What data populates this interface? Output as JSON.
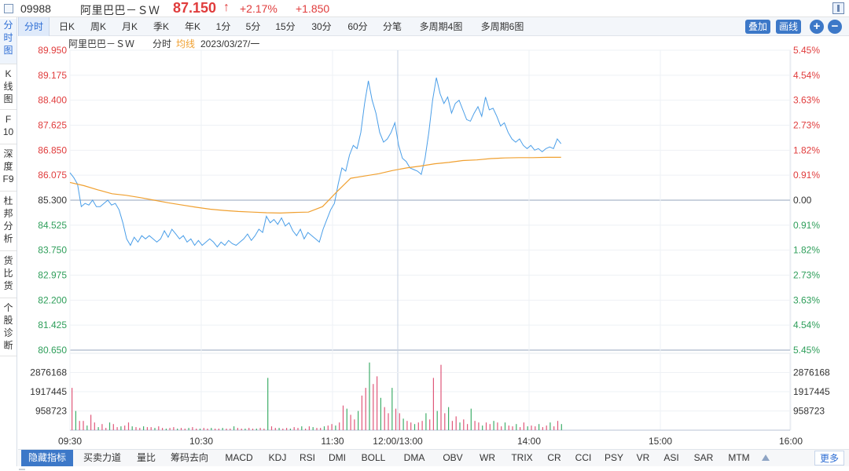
{
  "header": {
    "code": "09988",
    "name": "阿里巴巴－ＳＷ",
    "price": "87.150",
    "arrow": "↑",
    "change_pct": "+2.17%",
    "change": "+1.850"
  },
  "left_tabs": [
    {
      "label": [
        "分",
        "时",
        "图"
      ],
      "active": true
    },
    {
      "label": [
        "K",
        "线",
        "图"
      ],
      "active": false
    },
    {
      "label": [
        "F",
        "10"
      ],
      "active": false
    },
    {
      "label": [
        "深",
        "度",
        "F9"
      ],
      "active": false
    },
    {
      "label": [
        "杜",
        "邦",
        "分",
        "析"
      ],
      "active": false
    },
    {
      "label": [
        "货",
        "比",
        "货"
      ],
      "active": false
    },
    {
      "label": [
        "个",
        "股",
        "诊",
        "断"
      ],
      "active": false
    }
  ],
  "period_tabs": [
    "分时",
    "日K",
    "周K",
    "月K",
    "季K",
    "年K",
    "1分",
    "5分",
    "15分",
    "30分",
    "60分",
    "分笔",
    "多周期4图",
    "多周期6图"
  ],
  "toolbar": {
    "overlay": "叠加",
    "draw": "画线",
    "zoom_in": "+",
    "zoom_out": "−"
  },
  "chart_data": {
    "type": "line",
    "legend": {
      "name": "阿里巴巴－ＳＷ",
      "mode": "分时",
      "avg": "均线",
      "date": "2023/03/27/一"
    },
    "y_left_ticks": [
      "89.950",
      "89.175",
      "88.400",
      "87.625",
      "86.850",
      "86.075",
      "85.300",
      "84.525",
      "83.750",
      "82.975",
      "82.200",
      "81.425",
      "80.650"
    ],
    "y_right_ticks": [
      "5.45%",
      "4.54%",
      "3.63%",
      "2.73%",
      "1.82%",
      "0.91%",
      "0.00",
      "0.91%",
      "1.82%",
      "2.73%",
      "3.63%",
      "4.54%",
      "5.45%"
    ],
    "y_range": [
      80.65,
      89.95
    ],
    "prev_close": 85.3,
    "volume_ticks": [
      "2876168",
      "1917445",
      "958723"
    ],
    "volume_max": 3835000,
    "x_ticks": [
      "09:30",
      "10:30",
      "11:30",
      "12:00/13:00",
      "14:00",
      "15:00",
      "16:00"
    ],
    "series": [
      {
        "name": "分时",
        "color": "#4a9ee8",
        "values": [
          86.15,
          86.0,
          85.8,
          85.1,
          85.2,
          85.15,
          85.3,
          85.1,
          85.1,
          85.2,
          85.3,
          85.15,
          85.2,
          85.0,
          84.6,
          84.1,
          83.9,
          84.15,
          84.0,
          84.2,
          84.1,
          84.2,
          84.1,
          84.0,
          84.1,
          84.35,
          84.15,
          84.4,
          84.25,
          84.1,
          84.2,
          84.0,
          84.1,
          83.9,
          84.05,
          83.9,
          84.0,
          84.1,
          84.0,
          83.85,
          84.0,
          83.9,
          84.05,
          83.95,
          83.9,
          84.0,
          84.1,
          84.25,
          84.05,
          84.2,
          84.4,
          84.3,
          84.8,
          84.6,
          84.7,
          84.55,
          84.75,
          84.5,
          84.6,
          84.35,
          84.2,
          84.4,
          84.1,
          84.3,
          84.2,
          84.1,
          84.0,
          84.4,
          84.7,
          85.0,
          85.2,
          85.8,
          86.3,
          86.2,
          86.7,
          87.0,
          86.9,
          87.4,
          88.3,
          89.0,
          88.4,
          88.0,
          87.4,
          87.1,
          87.2,
          87.4,
          87.7,
          87.0,
          86.6,
          86.5,
          86.3,
          86.25,
          86.2,
          86.1,
          86.6,
          87.4,
          88.4,
          89.1,
          88.6,
          88.3,
          88.5,
          88.0,
          88.3,
          88.4,
          88.1,
          87.8,
          87.75,
          88.0,
          88.2,
          87.9,
          88.5,
          88.1,
          88.15,
          87.9,
          87.6,
          87.7,
          87.4,
          87.2,
          87.1,
          87.2,
          87.0,
          86.9,
          87.0,
          86.85,
          86.9,
          86.8,
          86.9,
          86.95,
          86.9,
          87.2,
          87.05
        ],
        "range": [
          0.0,
          0.682
        ]
      },
      {
        "name": "均线",
        "color": "#f0a030",
        "values": [
          85.85,
          85.75,
          85.62,
          85.5,
          85.45,
          85.38,
          85.3,
          85.22,
          85.15,
          85.08,
          85.02,
          84.98,
          84.95,
          84.93,
          84.91,
          84.9,
          84.92,
          84.93,
          85.1,
          85.55,
          85.98,
          86.05,
          86.12,
          86.22,
          86.3,
          86.36,
          86.43,
          86.47,
          86.53,
          86.55,
          86.59,
          86.61,
          86.62,
          86.62,
          86.63,
          86.63
        ],
        "range": [
          0.0,
          0.682
        ]
      }
    ],
    "volume_values": [
      0.55,
      0.25,
      0.12,
      0.12,
      0.06,
      0.2,
      0.1,
      0.04,
      0.08,
      0.03,
      0.1,
      0.08,
      0.04,
      0.05,
      0.06,
      0.1,
      0.05,
      0.04,
      0.03,
      0.05,
      0.04,
      0.04,
      0.03,
      0.05,
      0.03,
      0.02,
      0.03,
      0.04,
      0.02,
      0.03,
      0.02,
      0.03,
      0.04,
      0.02,
      0.02,
      0.03,
      0.02,
      0.03,
      0.02,
      0.02,
      0.03,
      0.02,
      0.02,
      0.05,
      0.03,
      0.02,
      0.02,
      0.03,
      0.02,
      0.02,
      0.03,
      0.02,
      0.68,
      0.05,
      0.03,
      0.03,
      0.02,
      0.03,
      0.02,
      0.04,
      0.03,
      0.05,
      0.02,
      0.05,
      0.04,
      0.03,
      0.03,
      0.05,
      0.06,
      0.08,
      0.06,
      0.1,
      0.32,
      0.28,
      0.2,
      0.14,
      0.25,
      0.45,
      0.55,
      0.88,
      0.6,
      0.7,
      0.42,
      0.3,
      0.22,
      0.55,
      0.28,
      0.22,
      0.15,
      0.12,
      0.1,
      0.08,
      0.1,
      0.12,
      0.22,
      0.14,
      0.68,
      0.25,
      0.85,
      0.22,
      0.3,
      0.12,
      0.18,
      0.1,
      0.14,
      0.08,
      0.28,
      0.12,
      0.1,
      0.06,
      0.1,
      0.08,
      0.12,
      0.1,
      0.05,
      0.1,
      0.06,
      0.05,
      0.08,
      0.04,
      0.1,
      0.05,
      0.06,
      0.05,
      0.08,
      0.04,
      0.06,
      0.1,
      0.05,
      0.12,
      0.08
    ]
  },
  "indicator_tabs": [
    "隐藏指标",
    "买卖力道",
    "量比",
    "筹码去向",
    "MACD",
    "KDJ",
    "RSI",
    "DMI",
    "BOLL",
    "DMA",
    "OBV",
    "WR",
    "TRIX",
    "CR",
    "CCI",
    "PSY",
    "VR",
    "ASI",
    "SAR",
    "MTM"
  ],
  "indicator_more": "更多",
  "colors": {
    "up": "#e03c3c",
    "down": "#2e9e5a",
    "price_line": "#4a9ee8",
    "avg_line": "#f0a030",
    "accent": "#3c78c8"
  }
}
